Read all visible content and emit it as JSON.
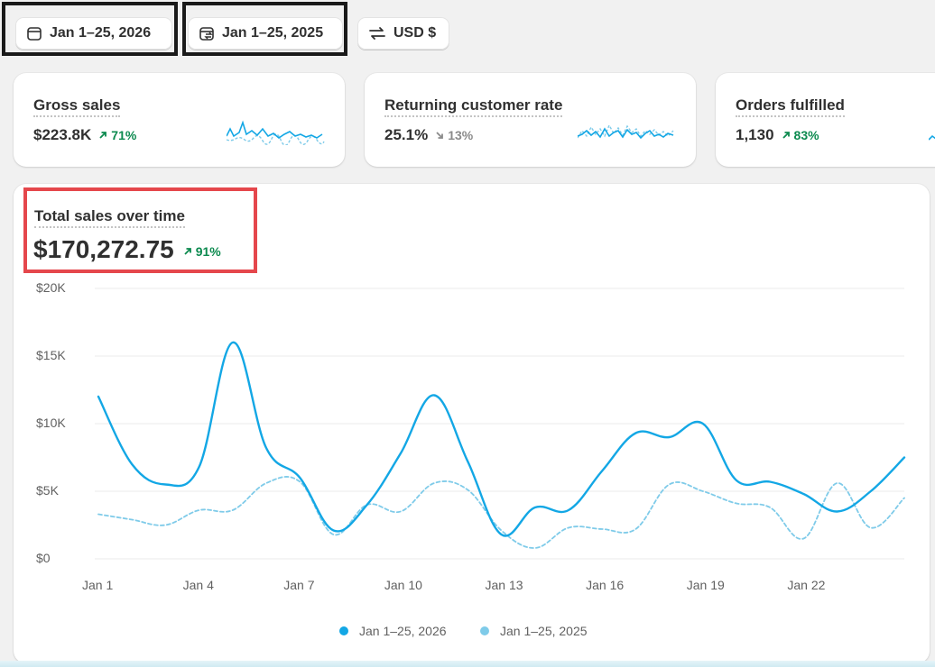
{
  "toolbar": {
    "date_range": "Jan 1–25, 2026",
    "compare_range": "Jan 1–25, 2025",
    "currency": "USD $"
  },
  "metrics": [
    {
      "title": "Gross sales",
      "value": "$223.8K",
      "delta": "71%",
      "direction": "up"
    },
    {
      "title": "Returning customer rate",
      "value": "25.1%",
      "delta": "13%",
      "direction": "down"
    },
    {
      "title": "Orders fulfilled",
      "value": "1,130",
      "delta": "83%",
      "direction": "up"
    }
  ],
  "chart": {
    "title": "Total sales over time",
    "total": "$170,272.75",
    "delta": "91%",
    "direction": "up"
  },
  "colors": {
    "primary_series": "#13a7e5",
    "comparison_series": "#7fcbe9",
    "positive": "#0c8a4f",
    "highlight_frame": "#e5474c"
  },
  "chart_data": {
    "type": "line",
    "title": "Total sales over time",
    "x": [
      "Jan 1",
      "Jan 2",
      "Jan 3",
      "Jan 4",
      "Jan 5",
      "Jan 6",
      "Jan 7",
      "Jan 8",
      "Jan 9",
      "Jan 10",
      "Jan 11",
      "Jan 12",
      "Jan 13",
      "Jan 14",
      "Jan 15",
      "Jan 16",
      "Jan 17",
      "Jan 18",
      "Jan 19",
      "Jan 20",
      "Jan 21",
      "Jan 22",
      "Jan 23",
      "Jan 24",
      "Jan 25"
    ],
    "x_tick_labels": [
      "Jan 1",
      "Jan 4",
      "Jan 7",
      "Jan 10",
      "Jan 13",
      "Jan 16",
      "Jan 19",
      "Jan 22"
    ],
    "y_tick_labels": [
      "$20K",
      "$15K",
      "$10K",
      "$5K",
      "$0"
    ],
    "ylim": [
      0,
      20000
    ],
    "grid": true,
    "legend": "bottom-center",
    "series": [
      {
        "name": "Jan 1–25, 2026",
        "style": "solid",
        "values": [
          12000,
          7000,
          5500,
          6800,
          16000,
          8200,
          6000,
          2100,
          4000,
          7800,
          12100,
          7200,
          1800,
          3800,
          3600,
          6500,
          9300,
          9000,
          10000,
          5800,
          5700,
          4800,
          3500,
          5000,
          7500
        ]
      },
      {
        "name": "Jan 1–25, 2025",
        "style": "dashed",
        "values": [
          3300,
          2900,
          2500,
          3600,
          3600,
          5600,
          5700,
          1800,
          4000,
          3500,
          5600,
          5100,
          2100,
          800,
          2300,
          2200,
          2200,
          5500,
          5000,
          4100,
          3800,
          1500,
          5600,
          2300,
          4500
        ]
      }
    ]
  }
}
